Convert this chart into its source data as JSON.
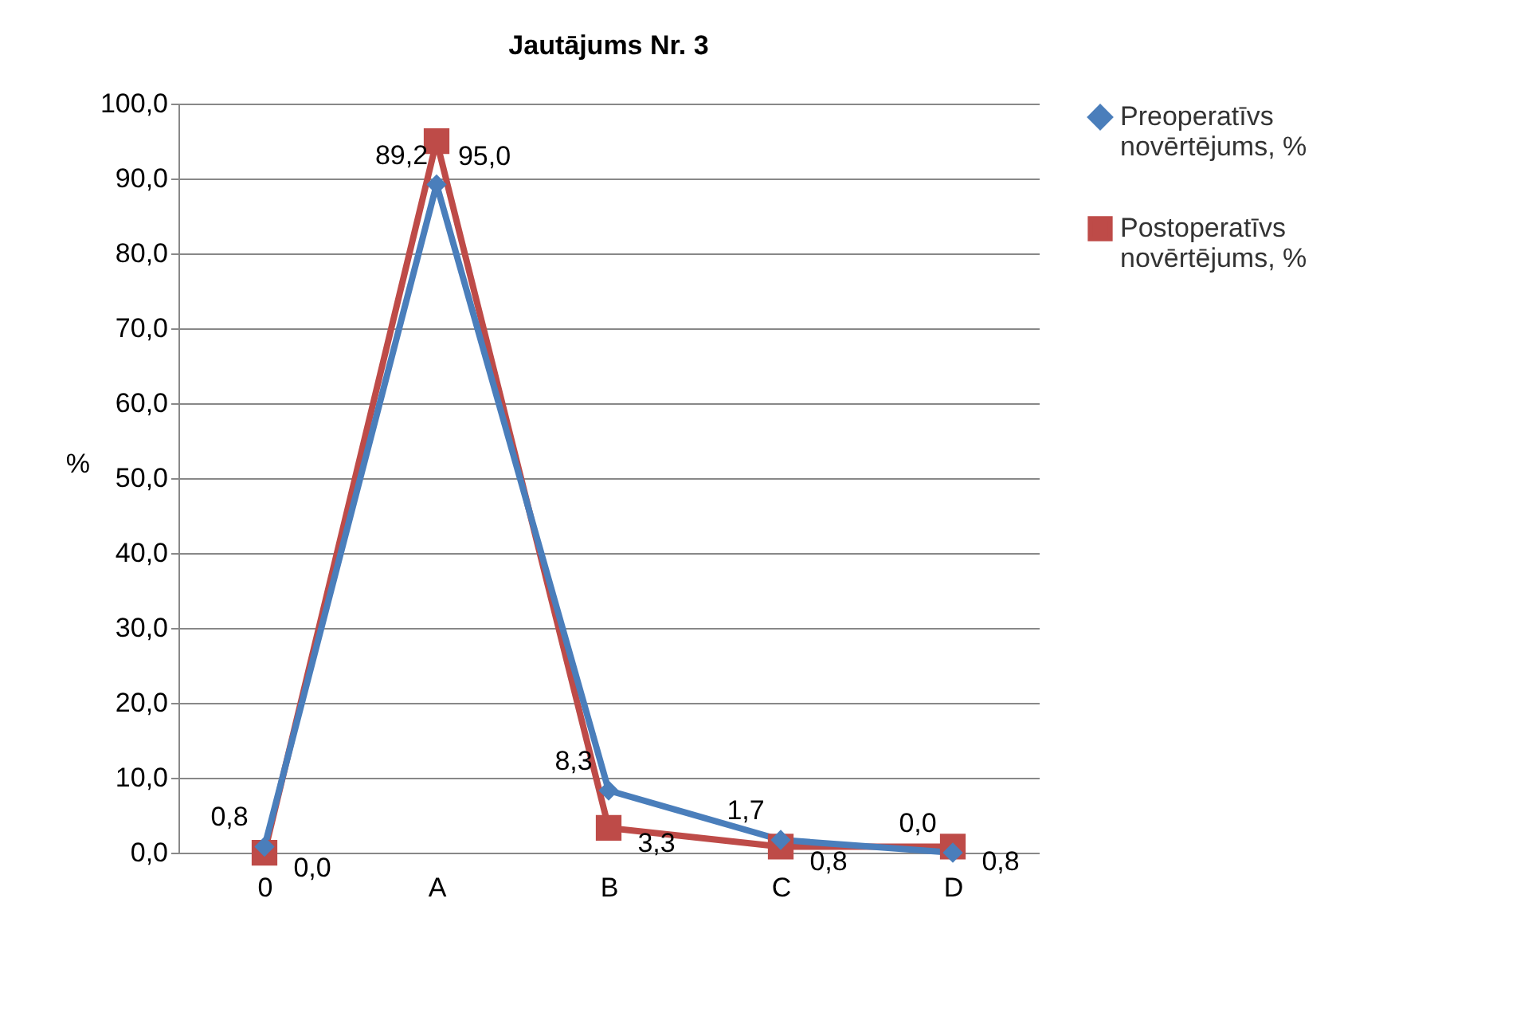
{
  "chart_data": {
    "type": "line",
    "title": "Jautājums Nr. 3",
    "ylabel": "%",
    "categories": [
      "0",
      "A",
      "B",
      "C",
      "D"
    ],
    "series": [
      {
        "name": "Preoperatīvs novērtējums, %",
        "color": "#4a7ebb",
        "marker": "diamond",
        "values": [
          0.8,
          89.2,
          8.3,
          1.7,
          0.0
        ],
        "value_labels": [
          "0,8",
          "89,2",
          "8,3",
          "1,7",
          "0,0"
        ]
      },
      {
        "name": "Postoperatīvs novērtējums, %",
        "color": "#be4b48",
        "marker": "square",
        "values": [
          0.0,
          95.0,
          3.3,
          0.8,
          0.8
        ],
        "value_labels": [
          "0,0",
          "95,0",
          "3,3",
          "0,8",
          "0,8"
        ]
      }
    ],
    "ylim": [
      0,
      100
    ],
    "yticks": [
      {
        "value": 0,
        "label": "0,0"
      },
      {
        "value": 10,
        "label": "10,0"
      },
      {
        "value": 20,
        "label": "20,0"
      },
      {
        "value": 30,
        "label": "30,0"
      },
      {
        "value": 40,
        "label": "40,0"
      },
      {
        "value": 50,
        "label": "50,0"
      },
      {
        "value": 60,
        "label": "60,0"
      },
      {
        "value": 70,
        "label": "70,0"
      },
      {
        "value": 80,
        "label": "80,0"
      },
      {
        "value": 90,
        "label": "90,0"
      },
      {
        "value": 100,
        "label": "100,0"
      }
    ],
    "grid": "y",
    "legend": "right"
  }
}
